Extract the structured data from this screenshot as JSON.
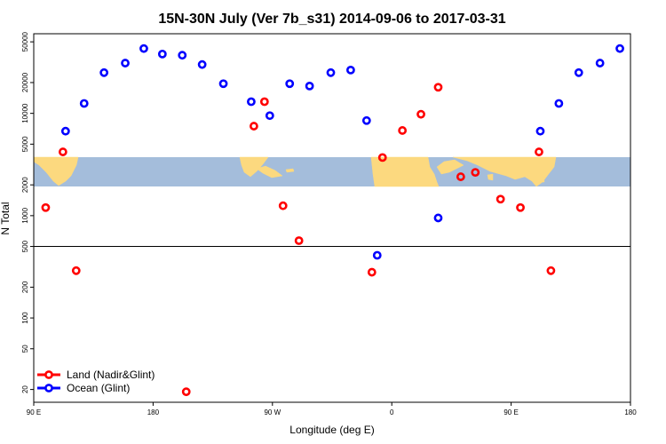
{
  "chart_data": {
    "type": "scatter",
    "title": "15N-30N July (Ver 7b_s31)   2014-09-06 to 2017-03-31",
    "xlabel": "Longitude (deg E)",
    "ylabel": "N Total",
    "xlim": [
      90,
      540
    ],
    "ylim": [
      15,
      60000
    ],
    "yscale": "log",
    "x_ticks": [
      {
        "value": 90,
        "label": "90 E"
      },
      {
        "value": 180,
        "label": "180"
      },
      {
        "value": 270,
        "label": "90 W"
      },
      {
        "value": 360,
        "label": "0"
      },
      {
        "value": 450,
        "label": "90 E"
      },
      {
        "value": 540,
        "label": "180"
      }
    ],
    "y_ticks": [
      {
        "value": 20,
        "label": "20"
      },
      {
        "value": 50,
        "label": "50"
      },
      {
        "value": 100,
        "label": "100"
      },
      {
        "value": 200,
        "label": "200"
      },
      {
        "value": 500,
        "label": "500"
      },
      {
        "value": 1000,
        "label": "1000"
      },
      {
        "value": 2000,
        "label": "2000"
      },
      {
        "value": 5000,
        "label": "5000"
      },
      {
        "value": 10000,
        "label": "10000"
      },
      {
        "value": 20000,
        "label": "20000"
      },
      {
        "value": 50000,
        "label": "50000"
      }
    ],
    "reference_line": 500,
    "map_band": {
      "lon_range": [
        90,
        540
      ],
      "lat_range": [
        15,
        30
      ],
      "ocean_color": "#A4BDDB",
      "land_color": "#FCD97F"
    },
    "series": [
      {
        "name": "Land (Nadir&Glint)",
        "color": "#FF0000",
        "points": [
          [
            99,
            1200
          ],
          [
            112,
            4200
          ],
          [
            122,
            290
          ],
          [
            205,
            19
          ],
          [
            256,
            7500
          ],
          [
            264,
            13000
          ],
          [
            278,
            1250
          ],
          [
            290,
            570
          ],
          [
            345,
            280
          ],
          [
            353,
            3700
          ],
          [
            368,
            6800
          ],
          [
            382,
            9800
          ],
          [
            395,
            18000
          ],
          [
            412,
            2400
          ],
          [
            423,
            2650
          ],
          [
            442,
            1450
          ],
          [
            457,
            1200
          ],
          [
            471,
            4200
          ],
          [
            480,
            290
          ]
        ]
      },
      {
        "name": "Ocean (Glint)",
        "color": "#0000FF",
        "points": [
          [
            114,
            6700
          ],
          [
            128,
            12500
          ],
          [
            143,
            25000
          ],
          [
            159,
            31000
          ],
          [
            173,
            43000
          ],
          [
            187,
            38000
          ],
          [
            202,
            37000
          ],
          [
            217,
            30000
          ],
          [
            233,
            19500
          ],
          [
            254,
            13000
          ],
          [
            268,
            9500
          ],
          [
            283,
            19500
          ],
          [
            298,
            18500
          ],
          [
            314,
            25000
          ],
          [
            329,
            26500
          ],
          [
            341,
            8500
          ],
          [
            349,
            410
          ],
          [
            395,
            950
          ],
          [
            472,
            6700
          ],
          [
            486,
            12500
          ],
          [
            501,
            25000
          ],
          [
            517,
            31000
          ],
          [
            532,
            43000
          ]
        ]
      }
    ]
  }
}
